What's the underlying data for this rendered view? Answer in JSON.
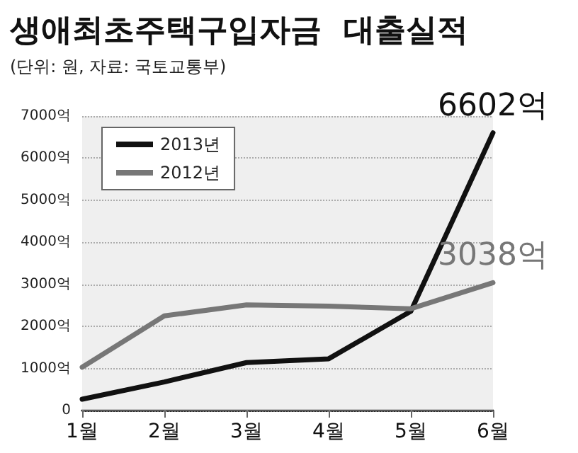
{
  "chart_data": {
    "type": "line",
    "title": "생애최초주택구입자금  대출실적",
    "subtitle": "(단위: 원, 자료: 국토교통부)",
    "categories": [
      "1월",
      "2월",
      "3월",
      "4월",
      "5월",
      "6월"
    ],
    "series": [
      {
        "name": "2013년",
        "color": "#111111",
        "values": [
          270,
          680,
          1140,
          1230,
          2360,
          6602
        ],
        "value_labels": [
          null,
          null,
          null,
          null,
          null,
          "6602억"
        ]
      },
      {
        "name": "2012년",
        "color": "#777777",
        "values": [
          1030,
          2250,
          2510,
          2480,
          2420,
          3038
        ],
        "value_labels": [
          null,
          null,
          null,
          null,
          null,
          "3038억"
        ]
      }
    ],
    "ylim": [
      0,
      7000
    ],
    "yticks": [
      0,
      {
        "value": 1000,
        "label": "1000억"
      },
      {
        "value": 2000,
        "label": "2000억"
      },
      {
        "value": 3000,
        "label": "3000억"
      },
      {
        "value": 4000,
        "label": "4000억"
      },
      {
        "value": 5000,
        "label": "5000억"
      },
      {
        "value": 6000,
        "label": "6000억"
      },
      {
        "value": 7000,
        "label": "7000억"
      }
    ],
    "bands": [
      {
        "axis": "x",
        "from": "1월",
        "to": "6월",
        "color": "#e4e4e4"
      }
    ],
    "grid": "y",
    "legend": "top left",
    "marker": "none",
    "line_style": "solid"
  }
}
